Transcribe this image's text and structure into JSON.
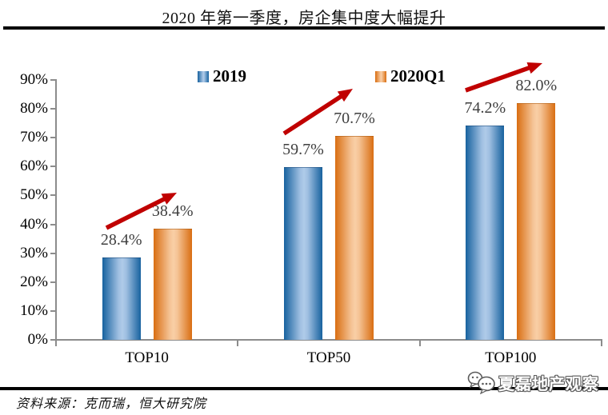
{
  "header": {
    "title": "2020 年第一季度，房企集中度大幅提升"
  },
  "footer": {
    "source": "资料来源：克而瑞，恒大研究院",
    "watermark": {
      "label": "夏磊地产观察",
      "icon": "chat-bubbles-icon"
    }
  },
  "chart_data": {
    "type": "bar",
    "title": "2020 年第一季度，房企集中度大幅提升",
    "categories": [
      "TOP10",
      "TOP50",
      "TOP100"
    ],
    "series": [
      {
        "name": "2019",
        "color_edge": "#17629F",
        "color_center": "#AFCBE9",
        "values": [
          28.4,
          59.7,
          74.2
        ],
        "labels": [
          "28.4%",
          "59.7%",
          "74.2%"
        ]
      },
      {
        "name": "2020Q1",
        "color_edge": "#D96E12",
        "color_center": "#F9CFA6",
        "values": [
          38.4,
          70.7,
          82.0
        ],
        "labels": [
          "38.4%",
          "70.7%",
          "82.0%"
        ]
      }
    ],
    "y_axis": {
      "min": 0,
      "max": 90,
      "step": 10,
      "tick_labels": [
        "0%",
        "10%",
        "20%",
        "30%",
        "40%",
        "50%",
        "60%",
        "70%",
        "80%",
        "90%"
      ]
    },
    "xlabel": "",
    "ylabel": "",
    "grid": false,
    "legend_position": "top",
    "annotations": {
      "trend_arrows": true,
      "arrow_color": "#C00000",
      "arrows_meaning": "increase from 2019 to 2020Q1 in each category"
    }
  }
}
